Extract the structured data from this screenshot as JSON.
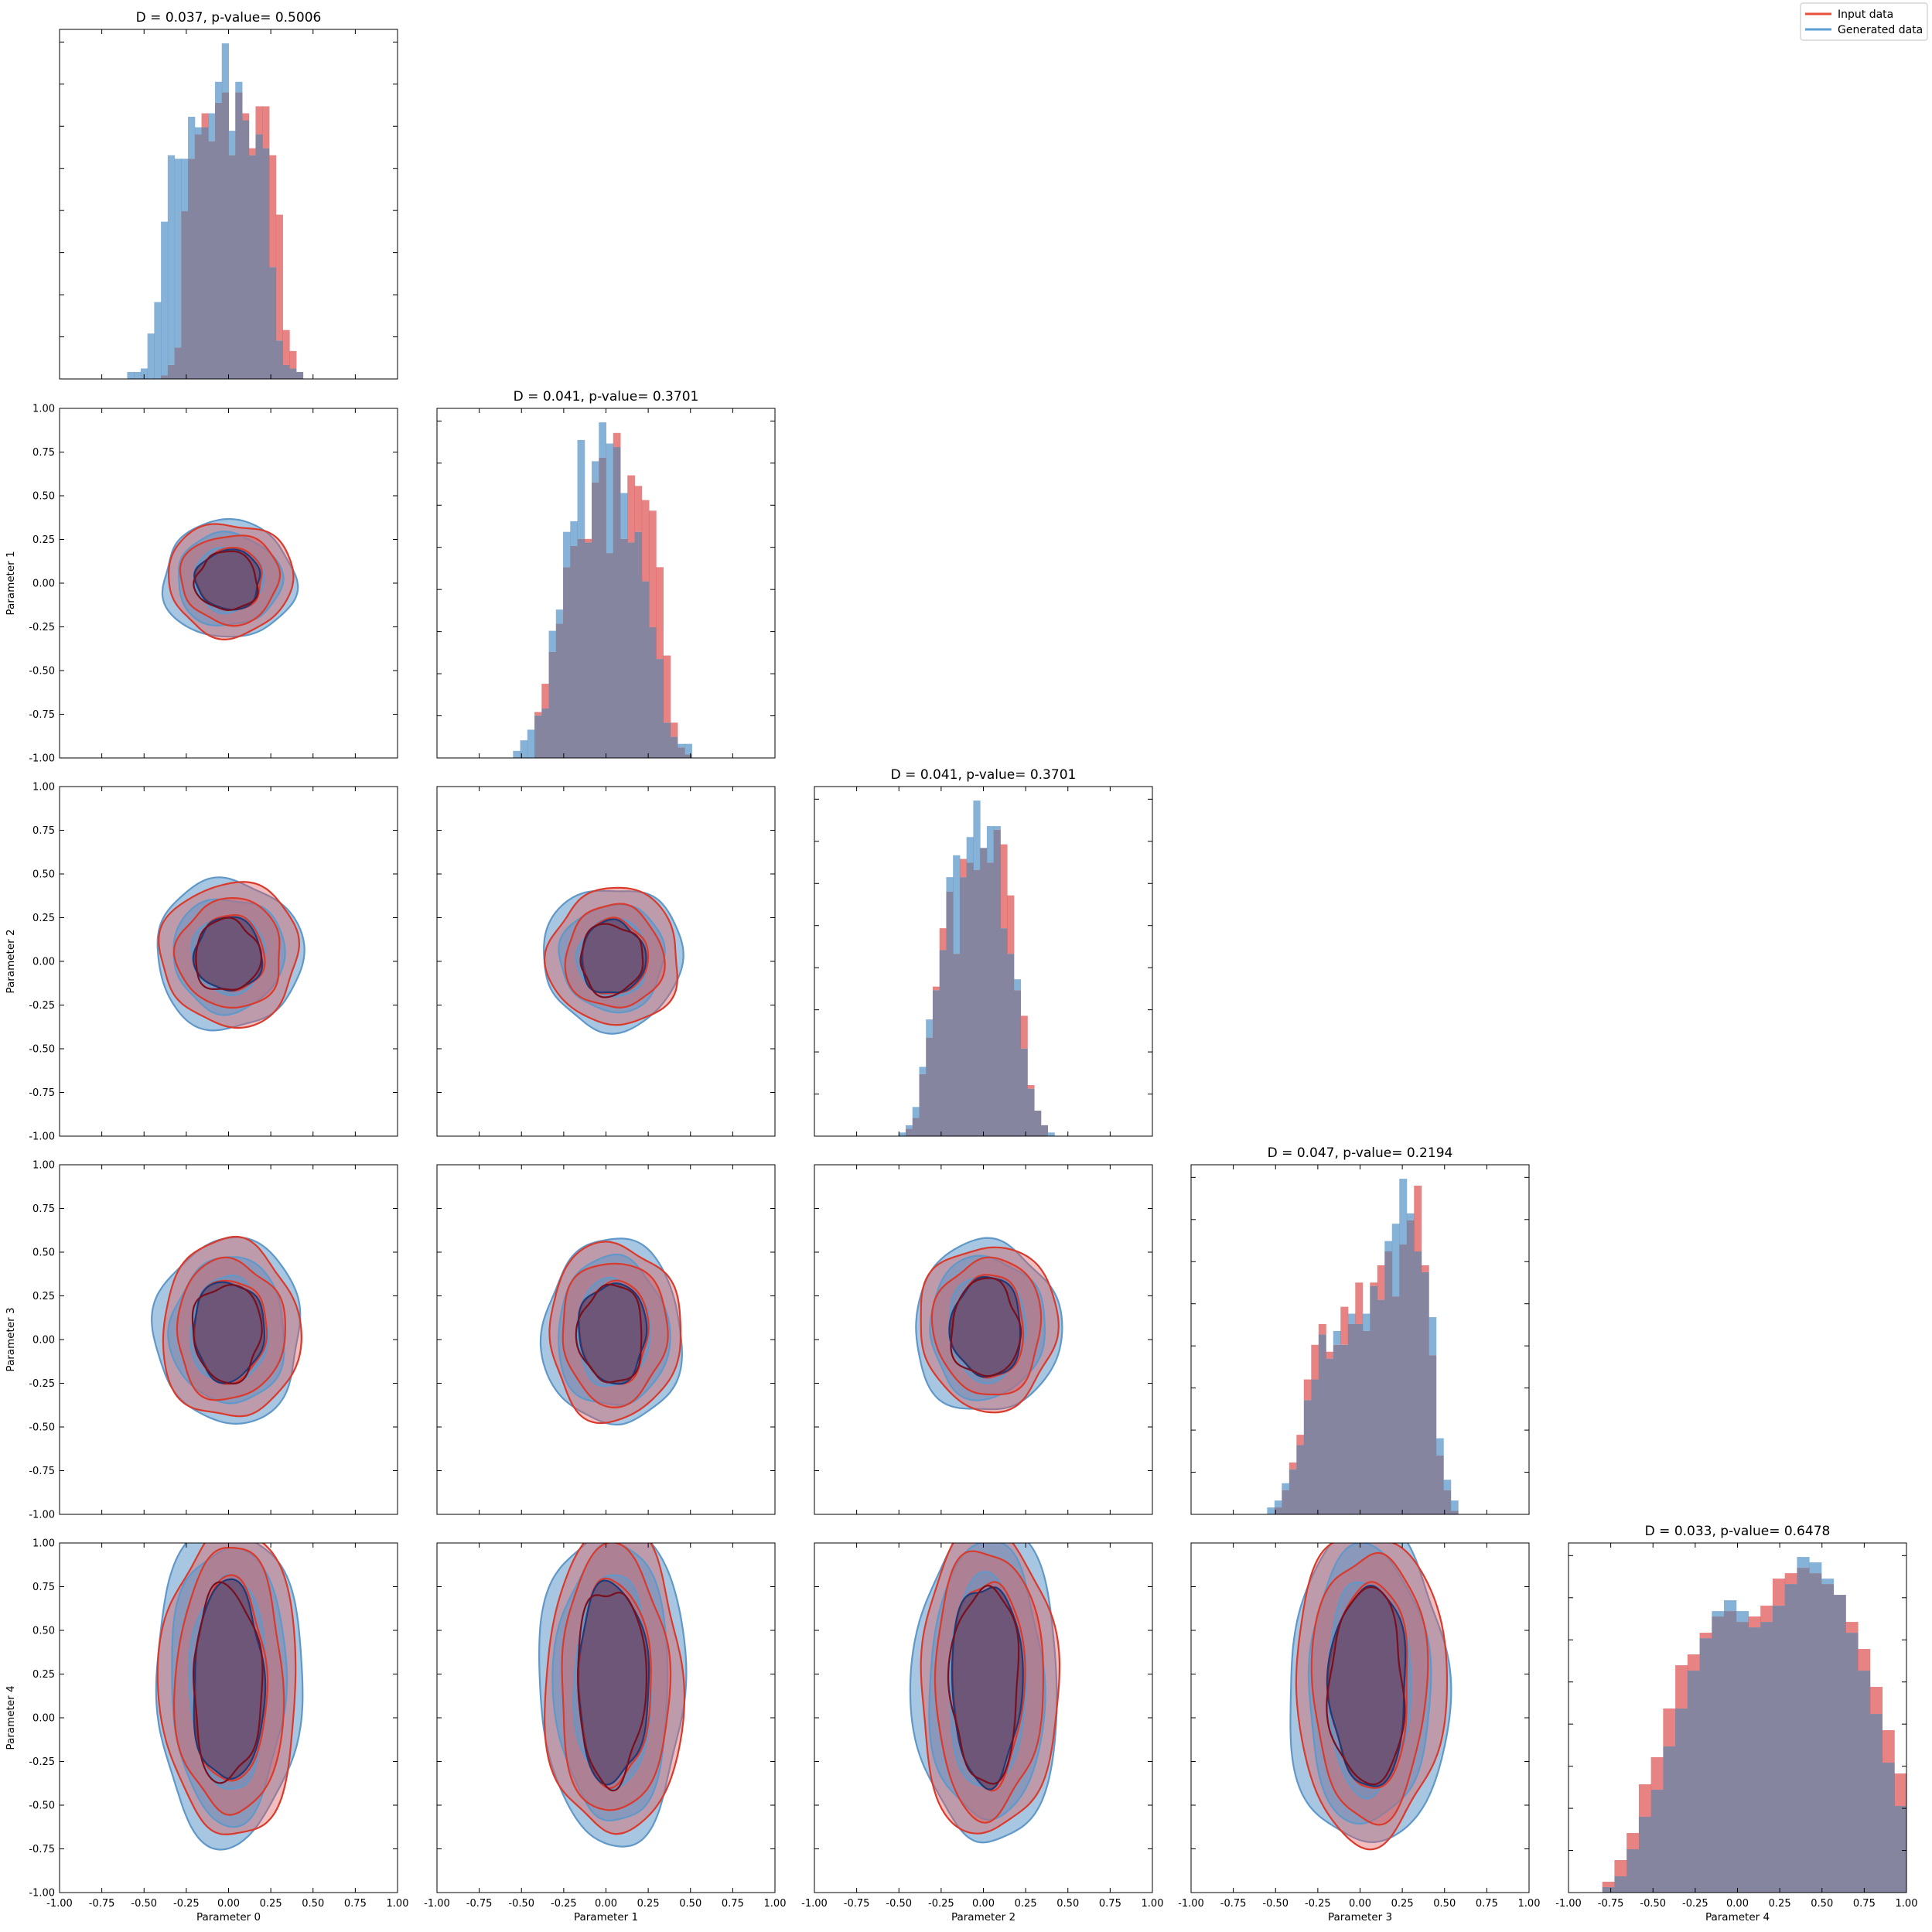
{
  "chart_data": {
    "type": "corner_plot",
    "parameters": [
      "Parameter 0",
      "Parameter 1",
      "Parameter 2",
      "Parameter 3",
      "Parameter 4"
    ],
    "xlim": [
      -1.0,
      1.0
    ],
    "ylim": [
      -1.0,
      1.0
    ],
    "x_tick_labels": [
      "-1.00",
      "-0.75",
      "-0.50",
      "-0.25",
      "0.00",
      "0.25",
      "0.50",
      "0.75",
      "1.00"
    ],
    "y_tick_labels": [
      "1.00",
      "0.75",
      "0.50",
      "0.25",
      "0.00",
      "-0.25",
      "-0.50",
      "-0.75",
      "-1.00"
    ],
    "legend": {
      "placement": "top-right",
      "entries": [
        {
          "label": "Input data",
          "color": "#e8503a"
        },
        {
          "label": "Generated data",
          "color": "#5b9fd4"
        }
      ]
    },
    "colors": {
      "input": "#e05a5a",
      "generated": "#5f98c9",
      "overlap": "#86859f",
      "contour_dark": "#3c3a66"
    },
    "diagonal": [
      {
        "title": "D = 0.037, p-value= 0.5006",
        "bin_edges": [
          -0.6,
          0.44
        ],
        "input_counts": [
          0,
          0,
          0,
          0,
          0,
          0.01,
          0.04,
          0.09,
          0.48,
          0.63,
          0.7,
          0.76,
          0.68,
          0.79,
          0.82,
          0.64,
          0.82,
          0.76,
          0.66,
          0.78,
          0.78,
          0.64,
          0.47,
          0.14,
          0.08,
          0.02
        ],
        "generated_counts": [
          0.02,
          0.02,
          0.03,
          0.13,
          0.22,
          0.45,
          0.64,
          0.63,
          0.63,
          0.75,
          0.72,
          0.72,
          0.76,
          0.85,
          0.96,
          0.71,
          0.85,
          0.74,
          0.64,
          0.7,
          0.66,
          0.32,
          0.11,
          0.04,
          0.03,
          0.02
        ]
      },
      {
        "title": "D = 0.041, p-value= 0.3701",
        "bin_edges": [
          -0.55,
          0.55
        ],
        "input_counts": [
          0,
          0,
          0,
          0.13,
          0.21,
          0.3,
          0.38,
          0.54,
          0.6,
          0.62,
          0.62,
          0.78,
          0.85,
          0.58,
          0.92,
          0.62,
          0.8,
          0.77,
          0.73,
          0.7,
          0.54,
          0.29,
          0.1,
          0.03,
          0.01,
          0
        ],
        "generated_counts": [
          0.02,
          0.05,
          0.08,
          0.12,
          0.14,
          0.36,
          0.42,
          0.64,
          0.67,
          0.9,
          0.61,
          0.84,
          0.95,
          0.89,
          0.88,
          0.75,
          0.61,
          0.64,
          0.5,
          0.37,
          0.28,
          0.1,
          0.06,
          0.04,
          0.04,
          0
        ]
      },
      {
        "title": "D = 0.041, p-value= 0.3701",
        "bin_edges": [
          -0.5,
          0.5
        ],
        "input_counts": [
          0,
          0.02,
          0.05,
          0.17,
          0.27,
          0.41,
          0.57,
          0.67,
          0.5,
          0.76,
          0.75,
          0.73,
          0.79,
          0.75,
          0.84,
          0.8,
          0.66,
          0.4,
          0.33,
          0.14,
          0.07,
          0.03,
          0,
          0,
          0
        ],
        "generated_counts": [
          0.01,
          0.03,
          0.08,
          0.19,
          0.32,
          0.4,
          0.51,
          0.71,
          0.77,
          0.71,
          0.82,
          0.92,
          0.79,
          0.85,
          0.85,
          0.57,
          0.5,
          0.43,
          0.24,
          0.13,
          0.07,
          0.03,
          0.01,
          0,
          0
        ]
      },
      {
        "title": "D = 0.047, p-value= 0.2194",
        "bin_edges": [
          -0.55,
          0.58
        ],
        "input_counts": [
          0,
          0.02,
          0.07,
          0.15,
          0.23,
          0.39,
          0.49,
          0.55,
          0.47,
          0.49,
          0.6,
          0.55,
          0.67,
          0.53,
          0.67,
          0.72,
          0.76,
          0.63,
          0.78,
          0.85,
          0.95,
          0.72,
          0.46,
          0.17,
          0.07,
          0.01
        ],
        "generated_counts": [
          0.02,
          0.04,
          0.09,
          0.13,
          0.2,
          0.33,
          0.39,
          0.52,
          0.45,
          0.53,
          0.49,
          0.58,
          0.55,
          0.58,
          0.66,
          0.62,
          0.79,
          0.84,
          0.97,
          0.87,
          0.76,
          0.7,
          0.57,
          0.22,
          0.1,
          0.04
        ]
      },
      {
        "title": "D = 0.033, p-value= 0.6478",
        "bin_edges": [
          -0.8,
          1.0
        ],
        "input_counts": [
          0.02,
          0.06,
          0.11,
          0.2,
          0.25,
          0.34,
          0.42,
          0.44,
          0.48,
          0.51,
          0.52,
          0.5,
          0.51,
          0.53,
          0.58,
          0.59,
          0.6,
          0.59,
          0.57,
          0.55,
          0.5,
          0.45,
          0.38,
          0.3,
          0.22
        ],
        "generated_counts": [
          0.01,
          0.03,
          0.08,
          0.14,
          0.19,
          0.27,
          0.34,
          0.41,
          0.47,
          0.52,
          0.54,
          0.52,
          0.49,
          0.5,
          0.53,
          0.57,
          0.62,
          0.61,
          0.58,
          0.55,
          0.48,
          0.41,
          0.33,
          0.24,
          0.16
        ]
      }
    ],
    "contour_panels": [
      {
        "row": 1,
        "col": 0,
        "x": "Parameter 0",
        "y": "Parameter 1",
        "center": [
          0.0,
          0.02
        ],
        "radii": [
          [
            0.38,
            0.33
          ],
          [
            0.3,
            0.26
          ],
          [
            0.2,
            0.18
          ]
        ]
      },
      {
        "row": 2,
        "col": 0,
        "x": "Parameter 0",
        "y": "Parameter 2",
        "center": [
          0.0,
          0.04
        ],
        "radii": [
          [
            0.42,
            0.42
          ],
          [
            0.32,
            0.32
          ],
          [
            0.21,
            0.22
          ]
        ]
      },
      {
        "row": 2,
        "col": 1,
        "x": "Parameter 1",
        "y": "Parameter 2",
        "center": [
          0.04,
          0.02
        ],
        "radii": [
          [
            0.4,
            0.4
          ],
          [
            0.3,
            0.3
          ],
          [
            0.2,
            0.22
          ]
        ]
      },
      {
        "row": 3,
        "col": 0,
        "x": "Parameter 0",
        "y": "Parameter 3",
        "center": [
          0.0,
          0.05
        ],
        "radii": [
          [
            0.42,
            0.52
          ],
          [
            0.33,
            0.41
          ],
          [
            0.22,
            0.3
          ]
        ]
      },
      {
        "row": 3,
        "col": 1,
        "x": "Parameter 1",
        "y": "Parameter 3",
        "center": [
          0.04,
          0.04
        ],
        "radii": [
          [
            0.4,
            0.52
          ],
          [
            0.32,
            0.42
          ],
          [
            0.21,
            0.3
          ]
        ]
      },
      {
        "row": 3,
        "col": 2,
        "x": "Parameter 2",
        "y": "Parameter 3",
        "center": [
          0.02,
          0.07
        ],
        "radii": [
          [
            0.42,
            0.48
          ],
          [
            0.33,
            0.4
          ],
          [
            0.22,
            0.3
          ]
        ]
      },
      {
        "row": 4,
        "col": 0,
        "x": "Parameter 0",
        "y": "Parameter 4",
        "center": [
          0.0,
          0.2
        ],
        "radii": [
          [
            0.42,
            0.9
          ],
          [
            0.33,
            0.78
          ],
          [
            0.22,
            0.6
          ]
        ]
      },
      {
        "row": 4,
        "col": 1,
        "x": "Parameter 1",
        "y": "Parameter 4",
        "center": [
          0.04,
          0.2
        ],
        "radii": [
          [
            0.42,
            0.9
          ],
          [
            0.33,
            0.78
          ],
          [
            0.22,
            0.6
          ]
        ]
      },
      {
        "row": 4,
        "col": 2,
        "x": "Parameter 2",
        "y": "Parameter 4",
        "center": [
          0.02,
          0.2
        ],
        "radii": [
          [
            0.42,
            0.9
          ],
          [
            0.33,
            0.78
          ],
          [
            0.22,
            0.6
          ]
        ]
      },
      {
        "row": 4,
        "col": 3,
        "x": "Parameter 3",
        "y": "Parameter 4",
        "center": [
          0.05,
          0.18
        ],
        "radii": [
          [
            0.46,
            0.9
          ],
          [
            0.35,
            0.78
          ],
          [
            0.24,
            0.6
          ]
        ]
      }
    ]
  }
}
